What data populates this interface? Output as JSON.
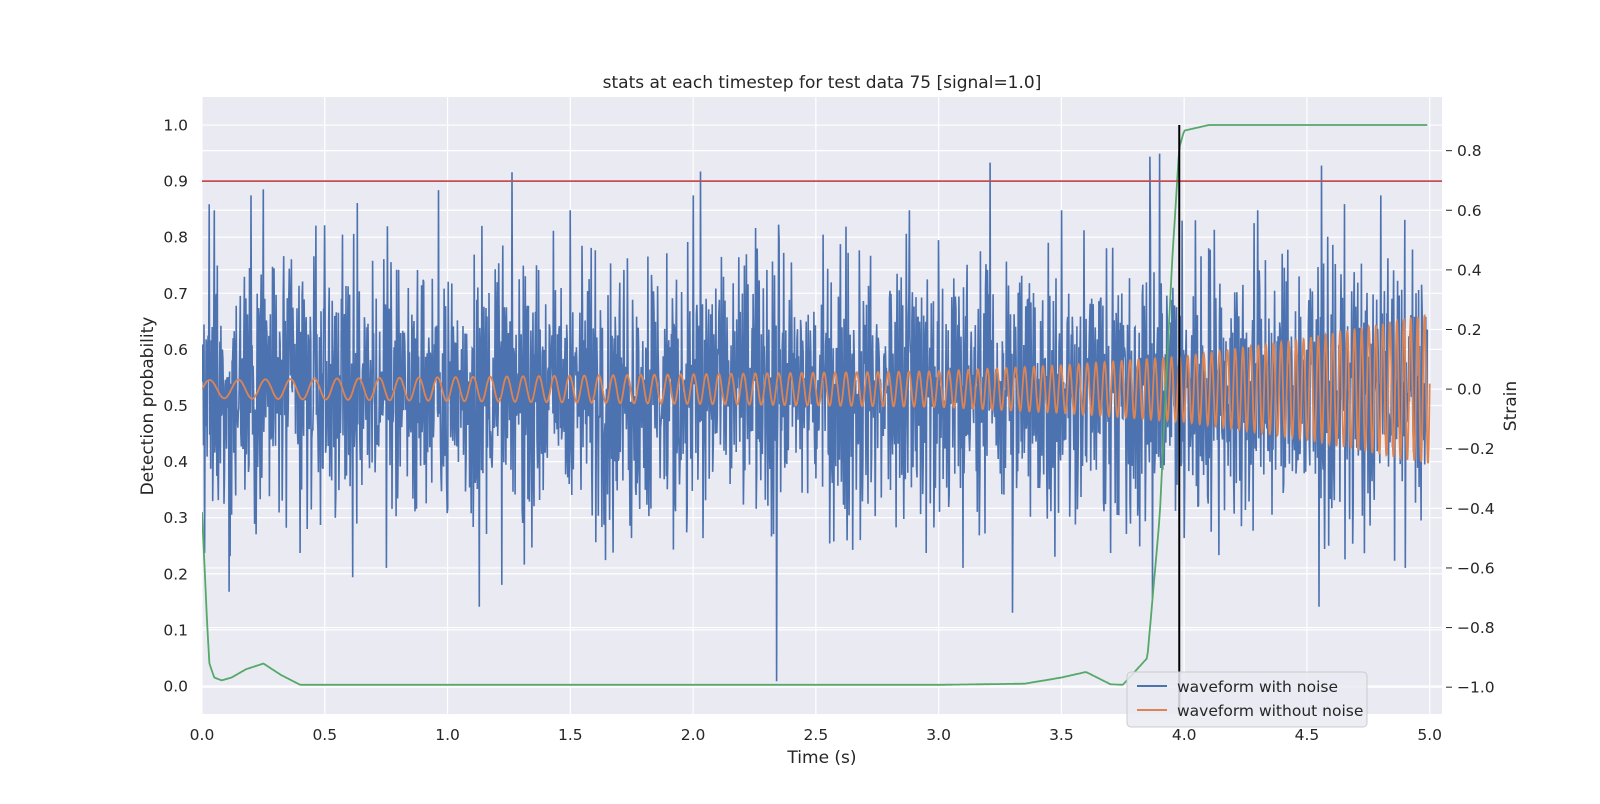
{
  "chart_data": {
    "type": "line",
    "title": "stats at each timestep for test data 75 [signal=1.0]",
    "xlabel": "Time (s)",
    "ylabel": "Detection probability",
    "y2label": "Strain",
    "xlim": [
      0.0,
      5.05
    ],
    "ylim": [
      -0.05,
      1.05
    ],
    "y2lim": [
      -1.09,
      0.98
    ],
    "x_ticks": [
      "0.0",
      "0.5",
      "1.0",
      "1.5",
      "2.0",
      "2.5",
      "3.0",
      "3.5",
      "4.0",
      "4.5",
      "5.0"
    ],
    "y_ticks": [
      "0.0",
      "0.1",
      "0.2",
      "0.3",
      "0.4",
      "0.5",
      "0.6",
      "0.7",
      "0.8",
      "0.9",
      "1.0"
    ],
    "y2_ticks": [
      "−1.0",
      "−0.8",
      "−0.6",
      "−0.4",
      "−0.2",
      "0.0",
      "0.2",
      "0.4",
      "0.6",
      "0.8"
    ],
    "grid": true,
    "legend": {
      "position": "lower-right",
      "entries": [
        "waveform with noise",
        "waveform without noise"
      ]
    },
    "threshold": {
      "y": 0.9,
      "color": "#c44e52"
    },
    "merger_time": {
      "x": 3.98,
      "ymin": -0.05,
      "ymax": 1.0,
      "color": "#000000"
    },
    "series": [
      {
        "name": "waveform with noise",
        "axis": "right",
        "color": "#4c72b0",
        "x": [
          0.0,
          0.01,
          0.03,
          0.05,
          0.1,
          0.11,
          0.2,
          0.25,
          0.4,
          0.5,
          0.75,
          0.8,
          1.0,
          1.12,
          1.13,
          1.5,
          1.75,
          2.0,
          2.03,
          2.04,
          2.3,
          2.34,
          2.35,
          2.5,
          2.88,
          2.95,
          3.0,
          3.1,
          3.2,
          3.21,
          3.3,
          3.5,
          3.7,
          3.86,
          3.87,
          3.9,
          3.95,
          4.0,
          4.3,
          4.55,
          4.56,
          4.6,
          4.8,
          4.9,
          4.99
        ],
        "y": [
          0.15,
          -0.55,
          0.62,
          0.6,
          -0.2,
          -0.68,
          0.65,
          0.67,
          -0.55,
          0.55,
          -0.6,
          0.4,
          -0.4,
          0.3,
          -0.73,
          0.6,
          -0.5,
          0.65,
          0.73,
          -0.5,
          0.4,
          -0.98,
          0.5,
          -0.3,
          0.6,
          -0.55,
          0.5,
          -0.6,
          0.4,
          0.76,
          -0.75,
          0.6,
          -0.55,
          0.78,
          -0.7,
          0.8,
          0.3,
          -0.5,
          0.6,
          -0.73,
          0.75,
          -0.4,
          0.65,
          -0.6,
          0.2
        ]
      },
      {
        "name": "waveform without noise",
        "axis": "right",
        "color": "#dd8452",
        "amplitude_envelope": {
          "x": [
            0.0,
            1.0,
            2.0,
            3.0,
            3.5,
            4.0,
            4.5,
            5.0
          ],
          "y": [
            0.03,
            0.04,
            0.05,
            0.06,
            0.08,
            0.11,
            0.17,
            0.25
          ]
        },
        "cycles_per_second": {
          "x": [
            0.0,
            5.0
          ],
          "y": [
            8,
            36
          ]
        }
      },
      {
        "name": "",
        "axis": "left",
        "color": "#55a868",
        "x": [
          0.0,
          0.02,
          0.03,
          0.05,
          0.08,
          0.12,
          0.18,
          0.25,
          0.32,
          0.4,
          1.0,
          2.0,
          3.0,
          3.35,
          3.5,
          3.6,
          3.7,
          3.75,
          3.85,
          3.9,
          3.95,
          3.98,
          4.0,
          4.1,
          4.99
        ],
        "y": [
          0.31,
          0.12,
          0.04,
          0.015,
          0.01,
          0.015,
          0.03,
          0.04,
          0.02,
          0.002,
          0.002,
          0.002,
          0.002,
          0.004,
          0.015,
          0.025,
          0.003,
          0.002,
          0.05,
          0.3,
          0.75,
          0.96,
          0.99,
          1.0,
          1.0
        ]
      }
    ]
  }
}
